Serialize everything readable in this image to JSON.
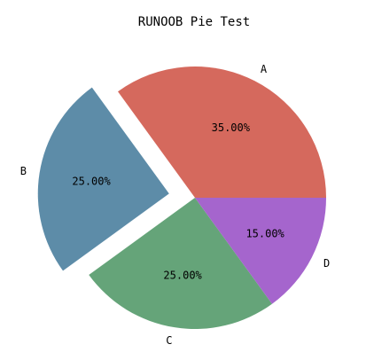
{
  "chart_data": {
    "type": "pie",
    "title": "RUNOOB Pie Test",
    "categories": [
      "A",
      "B",
      "C",
      "D"
    ],
    "values": [
      35,
      25,
      25,
      15
    ],
    "percent_labels": [
      "35.00%",
      "25.00%",
      "25.00%",
      "15.00%"
    ],
    "colors": [
      "#d5695d",
      "#5d8ca8",
      "#65a479",
      "#a565cd"
    ],
    "exploded": [
      0,
      0.2,
      0,
      0
    ],
    "start_angle_deg": 0,
    "direction": "counterclockwise",
    "legend": "none"
  }
}
